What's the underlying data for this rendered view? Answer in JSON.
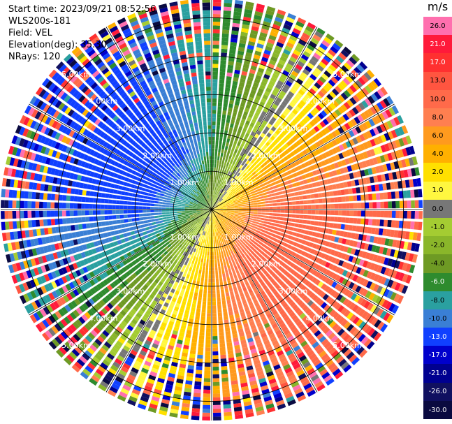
{
  "info": {
    "start_time": "Start time: 2023/09/21 08:52:56",
    "instrument": "WLS200s-181",
    "field": "Field: VEL",
    "elevation": "Elevation(deg): 35.30",
    "nrays": "NRays: 120"
  },
  "colorbar": {
    "unit": "m/s",
    "levels": [
      {
        "label": "26.0",
        "color": "#ff6fae"
      },
      {
        "label": "21.0",
        "color": "#ff1a3a"
      },
      {
        "label": "17.0",
        "color": "#ff3030"
      },
      {
        "label": "13.0",
        "color": "#ff5540"
      },
      {
        "label": "10.0",
        "color": "#ff6a4a"
      },
      {
        "label": "8.0",
        "color": "#ff7f50"
      },
      {
        "label": "6.0",
        "color": "#ff9a1e"
      },
      {
        "label": "4.0",
        "color": "#ffb000"
      },
      {
        "label": "2.0",
        "color": "#ffe000"
      },
      {
        "label": "1.0",
        "color": "#fff740"
      },
      {
        "label": "0.0",
        "color": "#777777"
      },
      {
        "label": "-1.0",
        "color": "#a4cc32"
      },
      {
        "label": "-2.0",
        "color": "#8ab62a"
      },
      {
        "label": "-4.0",
        "color": "#6e9a24"
      },
      {
        "label": "-6.0",
        "color": "#2e8b2e"
      },
      {
        "label": "-8.0",
        "color": "#2aa0a0"
      },
      {
        "label": "-10.0",
        "color": "#3a7fd5"
      },
      {
        "label": "-13.0",
        "color": "#1040ff"
      },
      {
        "label": "-17.0",
        "color": "#0000cc"
      },
      {
        "label": "-21.0",
        "color": "#000090"
      },
      {
        "label": "-26.0",
        "color": "#101060"
      },
      {
        "label": "-30.0",
        "color": "#0a0a40"
      }
    ]
  },
  "chart_data": {
    "type": "heatmap",
    "projection": "polar PPI (radar plan position indicator)",
    "field": "VEL",
    "units": "m/s",
    "nrays": 120,
    "elevation_deg": 35.3,
    "range_rings_km": [
      1.0,
      2.0,
      3.0,
      4.0,
      5.0
    ],
    "ring_labels": [
      "1.00km",
      "2.00km",
      "3.00km",
      "4.00km",
      "5.00km"
    ],
    "max_range_km": 5.5,
    "azimuth_lines_deg": [
      0,
      30,
      60,
      90,
      120,
      150,
      180,
      210,
      240,
      270,
      300,
      330
    ],
    "velocity_pattern": {
      "toward_azimuth_deg": 120,
      "max_inner_ms": 12,
      "notes": "Positive (warm colors) toward lower-right/east, negative (cool colors) toward upper-left/west; noisy speckle beyond ~3.5 km."
    }
  }
}
